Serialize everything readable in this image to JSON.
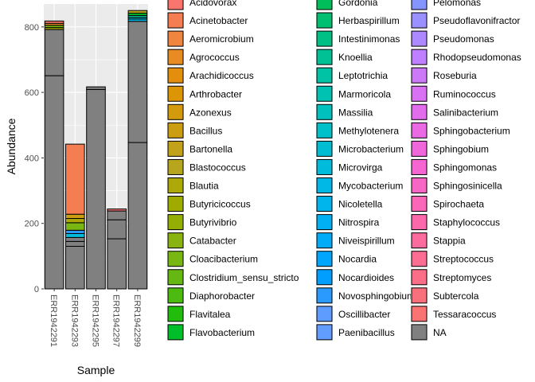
{
  "chart_data": {
    "type": "bar",
    "stacked": true,
    "xlabel": "Sample",
    "ylabel": "Abundance",
    "ylim": [
      0,
      870
    ],
    "yticks": [
      0,
      200,
      400,
      600,
      800
    ],
    "categories": [
      "ERR1942291",
      "ERR1942293",
      "ERR1942295",
      "ERR1942297",
      "ERR1942299"
    ],
    "grid": true,
    "legend_position": "right",
    "na_color": "#808080",
    "bars": [
      {
        "sample": "ERR1942291",
        "segments": [
          {
            "taxon": "NA",
            "value": 651
          },
          {
            "taxon": "NA",
            "value": 141
          },
          {
            "taxon": "Butyricicoccus",
            "value": 6
          },
          {
            "taxon": "Cloacibacterium",
            "value": 7
          },
          {
            "taxon": "Agrococcus",
            "value": 6
          },
          {
            "taxon": "Acidovorax",
            "value": 7
          }
        ]
      },
      {
        "sample": "ERR1942293",
        "segments": [
          {
            "taxon": "NA",
            "value": 130
          },
          {
            "taxon": "NA",
            "value": 15
          },
          {
            "taxon": "NA",
            "value": 12
          },
          {
            "taxon": "Microvirga",
            "value": 12
          },
          {
            "taxon": "Novosphingobium",
            "value": 10
          },
          {
            "taxon": "Cloacibacterium",
            "value": 23
          },
          {
            "taxon": "Blautia",
            "value": 13
          },
          {
            "taxon": "Bacillus",
            "value": 13
          },
          {
            "taxon": "Acinetobacter",
            "value": 214
          }
        ]
      },
      {
        "sample": "ERR1942295",
        "segments": [
          {
            "taxon": "NA",
            "value": 609
          },
          {
            "taxon": "NA",
            "value": 8
          }
        ]
      },
      {
        "sample": "ERR1942297",
        "segments": [
          {
            "taxon": "NA",
            "value": 153
          },
          {
            "taxon": "NA",
            "value": 58
          },
          {
            "taxon": "NA",
            "value": 27
          },
          {
            "taxon": "Tessaracoccus",
            "value": 6
          }
        ]
      },
      {
        "sample": "ERR1942299",
        "segments": [
          {
            "taxon": "NA",
            "value": 447
          },
          {
            "taxon": "NA",
            "value": 370
          },
          {
            "taxon": "Mycobacterium",
            "value": 7
          },
          {
            "taxon": "Microbacterium",
            "value": 5
          },
          {
            "taxon": "Knoellia",
            "value": 6
          },
          {
            "taxon": "Flavobacterium",
            "value": 7
          },
          {
            "taxon": "Blastococcus",
            "value": 8
          }
        ]
      }
    ],
    "legend": [
      {
        "label": "Acidovorax",
        "color": "#F8766D"
      },
      {
        "label": "Acinetobacter",
        "color": "#F47E51"
      },
      {
        "label": "Aeromicrobium",
        "color": "#EE8640"
      },
      {
        "label": "Agrococcus",
        "color": "#E88B22"
      },
      {
        "label": "Arachidicoccus",
        "color": "#E38F0D"
      },
      {
        "label": "Arthrobacter",
        "color": "#DC9505"
      },
      {
        "label": "Azonexus",
        "color": "#D49A0D"
      },
      {
        "label": "Bacillus",
        "color": "#CB9E12"
      },
      {
        "label": "Bartonella",
        "color": "#C2A21B"
      },
      {
        "label": "Blastococcus",
        "color": "#B8A51E"
      },
      {
        "label": "Blautia",
        "color": "#ACA909"
      },
      {
        "label": "Butyricicoccus",
        "color": "#A0AB00"
      },
      {
        "label": "Butyrivibrio",
        "color": "#95AE06"
      },
      {
        "label": "Catabacter",
        "color": "#89B30F"
      },
      {
        "label": "Cloacibacterium",
        "color": "#78B611"
      },
      {
        "label": "Clostridium_sensu_stricto",
        "color": "#65B812"
      },
      {
        "label": "Diaphorobacter",
        "color": "#4CBA0F"
      },
      {
        "label": "Flavitalea",
        "color": "#22BC0C"
      },
      {
        "label": "Flavobacterium",
        "color": "#00BD2A"
      },
      {
        "label": "Gordonia",
        "color": "#00BE5A"
      },
      {
        "label": "Herbaspirillum",
        "color": "#00BF71"
      },
      {
        "label": "Intestinimonas",
        "color": "#00C085"
      },
      {
        "label": "Knoellia",
        "color": "#00C195"
      },
      {
        "label": "Leptotrichia",
        "color": "#00C2A4"
      },
      {
        "label": "Marmoricola",
        "color": "#00C2B2"
      },
      {
        "label": "Massilia",
        "color": "#00C1BE"
      },
      {
        "label": "Methylotenera",
        "color": "#00C0C9"
      },
      {
        "label": "Microbacterium",
        "color": "#00BDD3"
      },
      {
        "label": "Microvirga",
        "color": "#00BBDC"
      },
      {
        "label": "Mycobacterium",
        "color": "#00B8E5"
      },
      {
        "label": "Nicoletella",
        "color": "#00B4EC"
      },
      {
        "label": "Nitrospira",
        "color": "#00B0F2"
      },
      {
        "label": "Niveispirillum",
        "color": "#00ABF7"
      },
      {
        "label": "Nocardia",
        "color": "#00A5FC"
      },
      {
        "label": "Nocardioides",
        "color": "#009EFF"
      },
      {
        "label": "Novosphingobium",
        "color": "#2A9AFF"
      },
      {
        "label": "Oscillibacter",
        "color": "#5E9CFF"
      },
      {
        "label": "Paenibacillus",
        "color": "#619CFF"
      },
      {
        "label": "Pelomonas",
        "color": "#8595FF"
      },
      {
        "label": "Pseudoflavonifractor",
        "color": "#9A90FF"
      },
      {
        "label": "Pseudomonas",
        "color": "#AD89FF"
      },
      {
        "label": "Rhodopseudomonas",
        "color": "#BE80FF"
      },
      {
        "label": "Roseburia",
        "color": "#CC79F8"
      },
      {
        "label": "Ruminococcus",
        "color": "#D872F2"
      },
      {
        "label": "Salinibacterium",
        "color": "#E26DEC"
      },
      {
        "label": "Sphingobacterium",
        "color": "#EA6AE4"
      },
      {
        "label": "Sphingobium",
        "color": "#F067DB"
      },
      {
        "label": "Sphingomonas",
        "color": "#F566D1"
      },
      {
        "label": "Sphingosinicella",
        "color": "#F866C5"
      },
      {
        "label": "Spirochaeta",
        "color": "#FA67B8"
      },
      {
        "label": "Staphylococcus",
        "color": "#FB69AB"
      },
      {
        "label": "Stappia",
        "color": "#FC6B9E"
      },
      {
        "label": "Streptococcus",
        "color": "#FB6D92"
      },
      {
        "label": "Streptomyces",
        "color": "#FA6E87"
      },
      {
        "label": "Subtercola",
        "color": "#F9707D"
      },
      {
        "label": "Tessaracoccus",
        "color": "#F87371"
      },
      {
        "label": "NA",
        "color": "#808080"
      }
    ]
  }
}
